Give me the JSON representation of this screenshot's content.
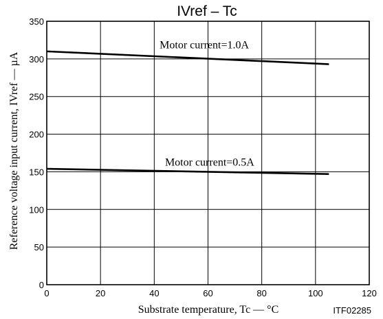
{
  "chart_data": {
    "type": "line",
    "title": "IVref  –  Tc",
    "xlabel": "Substrate temperature,  Tc — °C",
    "ylabel": "Reference voltage input current,  IVref — µA",
    "figure_code": "ITF02285",
    "xlim": [
      0,
      120
    ],
    "ylim": [
      0,
      350
    ],
    "xticks": [
      0,
      20,
      40,
      60,
      80,
      100,
      120
    ],
    "yticks": [
      0,
      50,
      100,
      150,
      200,
      250,
      300,
      350
    ],
    "grid": true,
    "series": [
      {
        "name": "Motor current=1.0A",
        "x": [
          0,
          105
        ],
        "y": [
          310,
          293
        ]
      },
      {
        "name": "Motor current=0.5A",
        "x": [
          0,
          105
        ],
        "y": [
          154,
          147
        ]
      }
    ],
    "annotations": [
      {
        "text": "Motor current=1.0A",
        "x": 42,
        "y": 314
      },
      {
        "text": "Motor current=0.5A",
        "x": 44,
        "y": 158
      }
    ]
  }
}
